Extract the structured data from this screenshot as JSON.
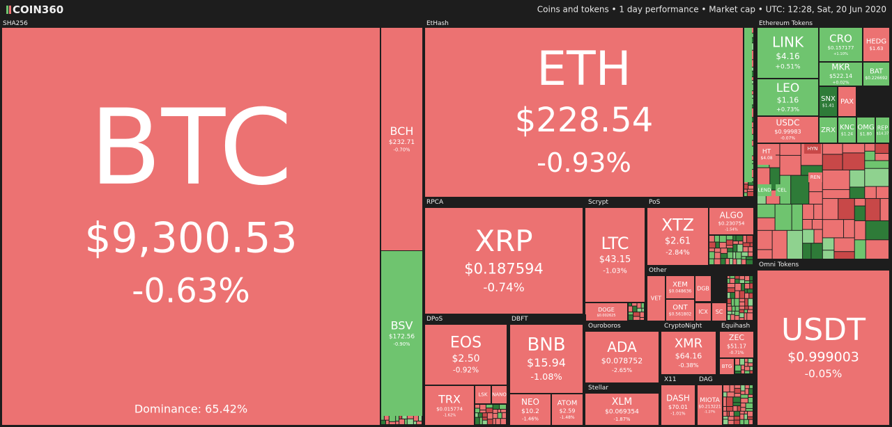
{
  "header": {
    "logo": "COIN360",
    "info": "Coins and tokens  •  1 day performance  •  Market cap  •  UTC: 12:28, Sat, 20 Jun 2020"
  },
  "dominance": "Dominance: 65.42%",
  "groups": [
    {
      "label": "SHA256",
      "tiles": [
        {
          "symbol": "BTC",
          "price": "$9,300.53",
          "change": "-0.63%"
        },
        {
          "symbol": "BCH",
          "price": "$232.71",
          "change": "-0.70%"
        },
        {
          "symbol": "BSV",
          "price": "$172.56",
          "change": "-0.90%"
        }
      ]
    },
    {
      "label": "EtHash",
      "tiles": [
        {
          "symbol": "ETH",
          "price": "$228.54",
          "change": "-0.93%"
        }
      ]
    },
    {
      "label": "Ethereum Tokens",
      "tiles": [
        {
          "symbol": "LINK",
          "price": "$4.16",
          "change": "+0.51%"
        },
        {
          "symbol": "CRO",
          "price": "$0.157177",
          "change": "+1.10%"
        },
        {
          "symbol": "HEDG",
          "price": "$1.63"
        },
        {
          "symbol": "MKR",
          "price": "$522.14",
          "change": "+0.02%"
        },
        {
          "symbol": "BAT",
          "price": "$0.226692"
        },
        {
          "symbol": "LEO",
          "price": "$1.16",
          "change": "+0.73%"
        },
        {
          "symbol": "SNX",
          "price": "$1.41"
        },
        {
          "symbol": "PAX"
        },
        {
          "symbol": "USDC",
          "price": "$0.99983",
          "change": "-0.07%"
        },
        {
          "symbol": "ZRX"
        },
        {
          "symbol": "KNC",
          "price": "$1.24"
        },
        {
          "symbol": "OMG",
          "price": "$1.80"
        },
        {
          "symbol": "REP",
          "price": "$14.37"
        },
        {
          "symbol": "HT",
          "price": "$4.08"
        },
        {
          "symbol": "HYN"
        },
        {
          "symbol": "LEND"
        },
        {
          "symbol": "CEL"
        },
        {
          "symbol": "REN"
        }
      ]
    },
    {
      "label": "Omni Tokens",
      "tiles": [
        {
          "symbol": "USDT",
          "price": "$0.999003",
          "change": "-0.05%"
        }
      ]
    },
    {
      "label": "RPCA",
      "tiles": [
        {
          "symbol": "XRP",
          "price": "$0.187594",
          "change": "-0.74%"
        }
      ]
    },
    {
      "label": "Scrypt",
      "tiles": [
        {
          "symbol": "LTC",
          "price": "$43.15",
          "change": "-1.03%"
        },
        {
          "symbol": "DOGE",
          "price": "$0.002625"
        }
      ]
    },
    {
      "label": "PoS",
      "tiles": [
        {
          "symbol": "XTZ",
          "price": "$2.61",
          "change": "-2.84%"
        },
        {
          "symbol": "ALGO",
          "price": "$0.230754",
          "change": "-1.54%"
        }
      ]
    },
    {
      "label": "Other",
      "tiles": [
        {
          "symbol": "VET"
        },
        {
          "symbol": "XEM",
          "price": "$0.048636"
        },
        {
          "symbol": "ONT",
          "price": "$0.561802"
        },
        {
          "symbol": "DGB"
        },
        {
          "symbol": "ICX"
        },
        {
          "symbol": "SC"
        }
      ]
    },
    {
      "label": "DPoS",
      "tiles": [
        {
          "symbol": "EOS",
          "price": "$2.50",
          "change": "-0.92%"
        },
        {
          "symbol": "TRX",
          "price": "$0.015774",
          "change": "-1.62%"
        },
        {
          "symbol": "LSK"
        },
        {
          "symbol": "NANO"
        }
      ]
    },
    {
      "label": "DBFT",
      "tiles": [
        {
          "symbol": "BNB",
          "price": "$15.94",
          "change": "-1.08%"
        },
        {
          "symbol": "NEO",
          "price": "$10.2",
          "change": "-1.46%"
        },
        {
          "symbol": "ATOM",
          "price": "$2.59",
          "change": "-1.48%"
        }
      ]
    },
    {
      "label": "Ouroboros",
      "tiles": [
        {
          "symbol": "ADA",
          "price": "$0.078752",
          "change": "-2.65%"
        }
      ]
    },
    {
      "label": "Stellar",
      "tiles": [
        {
          "symbol": "XLM",
          "price": "$0.069354",
          "change": "-1.87%"
        }
      ]
    },
    {
      "label": "CryptoNight",
      "tiles": [
        {
          "symbol": "XMR",
          "price": "$64.16",
          "change": "-0.38%"
        }
      ]
    },
    {
      "label": "Equihash",
      "tiles": [
        {
          "symbol": "ZEC",
          "price": "$51.17",
          "change": "-0.71%"
        },
        {
          "symbol": "BTG"
        }
      ]
    },
    {
      "label": "X11",
      "tiles": [
        {
          "symbol": "DASH",
          "price": "$70.01",
          "change": "-1.01%"
        }
      ]
    },
    {
      "label": "DAG",
      "tiles": [
        {
          "symbol": "MIOTA",
          "price": "$0.213221",
          "change": "-1.27%"
        }
      ]
    }
  ]
}
